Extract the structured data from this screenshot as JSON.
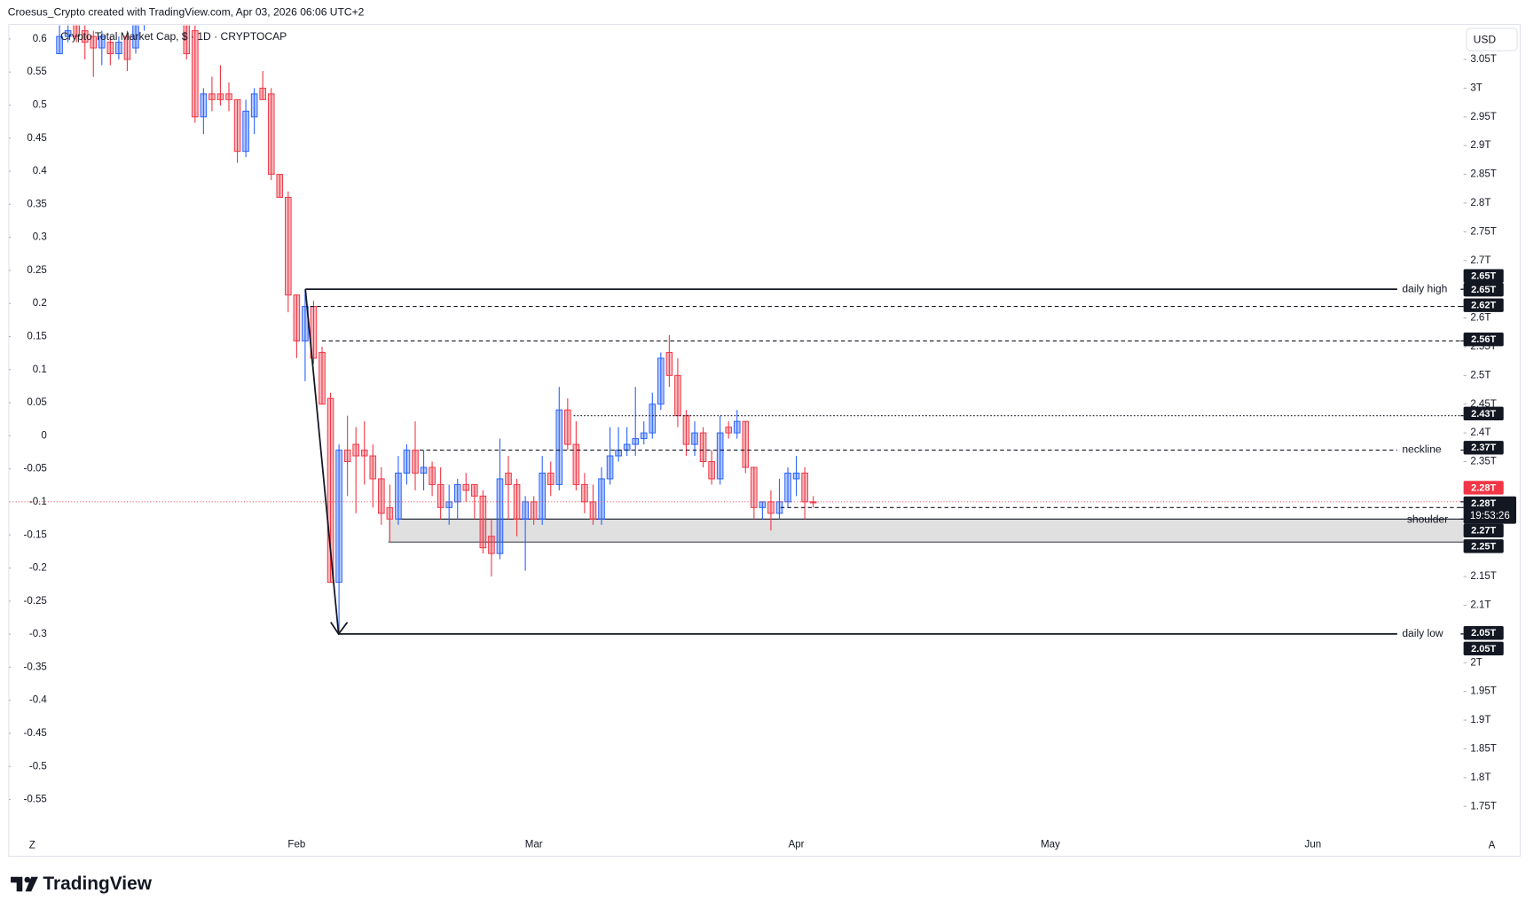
{
  "chart_data": {
    "type": "candlestick",
    "header": "Croesus_Crypto created with TradingView.com, Apr 03, 2026 06:06 UTC+2",
    "legend_title": "Crypto Total Market Cap, $ · 1D · CRYPTOCAP",
    "currency": "USD",
    "scale_buttons": [
      "Z",
      "A"
    ],
    "brand": "TradingView",
    "up_color": "#2962ff",
    "down_color": "#f23645",
    "grid": false,
    "categories": [
      null,
      null,
      null,
      null,
      null,
      null,
      null,
      null,
      null,
      null,
      null,
      null,
      null,
      null,
      null,
      null,
      null,
      null,
      null,
      null,
      null,
      null,
      null,
      null,
      null,
      null,
      null,
      null,
      "Feb",
      null,
      null,
      null,
      null,
      null,
      null,
      null,
      null,
      null,
      null,
      null,
      null,
      null,
      null,
      null,
      null,
      null,
      null,
      null,
      null,
      null,
      null,
      null,
      null,
      null,
      null,
      null,
      "Mar",
      null,
      null,
      null,
      null,
      null,
      null,
      null,
      null,
      null,
      null,
      null,
      null,
      null,
      null,
      null,
      null,
      null,
      null,
      null,
      null,
      null,
      null,
      null,
      null,
      null,
      null,
      null,
      null,
      null,
      null,
      "Apr",
      null,
      null,
      null,
      null,
      null,
      null,
      null,
      null,
      null,
      null,
      null,
      null,
      null,
      null,
      null,
      null,
      null,
      null,
      null,
      null,
      null,
      null,
      null,
      null,
      null,
      null,
      null,
      null,
      null,
      "May",
      null,
      null,
      null,
      null,
      null,
      null,
      null,
      null,
      null,
      null,
      null,
      null,
      null,
      null,
      null,
      null,
      null,
      null,
      null,
      null,
      null,
      null,
      null,
      null,
      null,
      null,
      null,
      null,
      null,
      null,
      "Jun"
    ],
    "open": [
      3.06,
      3.09,
      3.11,
      3.1,
      3.09,
      3.07,
      3.08,
      3.06,
      3.09,
      3.07,
      3.11,
      3.16,
      3.15,
      3.17,
      3.15,
      3.12,
      3.1,
      2.95,
      2.99,
      2.99,
      2.99,
      2.98,
      2.89,
      2.95,
      3.0,
      2.99,
      2.85,
      2.81,
      2.64,
      2.56,
      2.62,
      2.54,
      2.46,
      2.14,
      2.37,
      2.38,
      2.37,
      2.36,
      2.32,
      2.27,
      2.25,
      2.33,
      2.37,
      2.33,
      2.34,
      2.31,
      2.27,
      2.28,
      2.31,
      2.31,
      2.29,
      2.22,
      2.19,
      2.33,
      2.31,
      2.25,
      2.28,
      2.25,
      2.33,
      2.31,
      2.44,
      2.38,
      2.31,
      2.28,
      2.25,
      2.32,
      2.36,
      2.37,
      2.38,
      2.39,
      2.4,
      2.45,
      2.54,
      2.5,
      2.43,
      2.38,
      2.4,
      2.35,
      2.32,
      2.41,
      2.4,
      2.42,
      2.34,
      2.27,
      2.28,
      2.26,
      2.28,
      2.32,
      2.33,
      2.28,
      null,
      null,
      null,
      null,
      null,
      null,
      null,
      null,
      null,
      null,
      null,
      null,
      null,
      null,
      null,
      null,
      null,
      null,
      null,
      null,
      null,
      null,
      null,
      null,
      null,
      null,
      null,
      null,
      null,
      null,
      null,
      null,
      null,
      null,
      null,
      null,
      null,
      null,
      null,
      null,
      null,
      null,
      null,
      null,
      null,
      null,
      null,
      null,
      null,
      null,
      null,
      null,
      null,
      null,
      null,
      null,
      null,
      null,
      null
    ],
    "high": [
      3.11,
      3.12,
      3.12,
      3.11,
      3.1,
      3.1,
      3.09,
      3.09,
      3.1,
      3.13,
      3.18,
      3.2,
      3.19,
      3.21,
      3.17,
      3.13,
      3.11,
      3.0,
      3.02,
      3.04,
      3.01,
      2.98,
      2.98,
      3.0,
      3.03,
      3.0,
      2.85,
      2.82,
      2.64,
      2.65,
      2.63,
      2.55,
      2.47,
      2.38,
      2.43,
      2.41,
      2.42,
      2.38,
      2.34,
      2.31,
      2.36,
      2.38,
      2.42,
      2.37,
      2.35,
      2.34,
      2.31,
      2.32,
      2.33,
      2.31,
      2.3,
      2.25,
      2.39,
      2.36,
      2.32,
      2.29,
      2.29,
      2.36,
      2.35,
      2.48,
      2.46,
      2.42,
      2.33,
      2.31,
      2.34,
      2.41,
      2.41,
      2.41,
      2.48,
      2.42,
      2.47,
      2.54,
      2.57,
      2.53,
      2.44,
      2.42,
      2.41,
      2.37,
      2.43,
      2.42,
      2.44,
      2.42,
      2.34,
      2.28,
      2.3,
      2.32,
      2.34,
      2.36,
      2.34,
      2.29,
      null,
      null,
      null,
      null,
      null,
      null,
      null,
      null,
      null,
      null,
      null,
      null,
      null,
      null,
      null,
      null,
      null,
      null,
      null,
      null,
      null,
      null,
      null,
      null,
      null,
      null,
      null,
      null,
      null,
      null,
      null,
      null,
      null,
      null,
      null,
      null,
      null,
      null,
      null,
      null,
      null,
      null,
      null,
      null,
      null,
      null,
      null,
      null,
      null,
      null,
      null,
      null,
      null,
      null,
      null,
      null,
      null,
      null,
      null
    ],
    "low": [
      3.06,
      3.08,
      3.08,
      3.05,
      3.02,
      3.04,
      3.04,
      3.05,
      3.03,
      3.06,
      3.1,
      3.13,
      3.12,
      3.14,
      3.12,
      3.05,
      2.94,
      2.92,
      2.96,
      2.97,
      2.96,
      2.87,
      2.88,
      2.92,
      2.98,
      2.84,
      2.81,
      2.61,
      2.53,
      2.49,
      2.52,
      2.45,
      2.14,
      2.05,
      2.29,
      2.26,
      2.31,
      2.27,
      2.24,
      2.21,
      2.24,
      2.31,
      2.3,
      2.3,
      2.29,
      2.25,
      2.24,
      2.25,
      2.28,
      2.25,
      2.19,
      2.15,
      2.18,
      2.25,
      2.22,
      2.16,
      2.24,
      2.24,
      2.29,
      2.3,
      2.37,
      2.3,
      2.26,
      2.24,
      2.24,
      2.31,
      2.35,
      2.36,
      2.36,
      2.38,
      2.39,
      2.44,
      2.48,
      2.41,
      2.36,
      2.36,
      2.34,
      2.31,
      2.31,
      2.39,
      2.39,
      2.33,
      2.25,
      2.25,
      2.23,
      2.25,
      2.27,
      2.29,
      2.25,
      2.27,
      null,
      null,
      null,
      null,
      null,
      null,
      null,
      null,
      null,
      null,
      null,
      null,
      null,
      null,
      null,
      null,
      null,
      null,
      null,
      null,
      null,
      null,
      null,
      null,
      null,
      null,
      null,
      null,
      null,
      null,
      null,
      null,
      null,
      null,
      null,
      null,
      null,
      null,
      null,
      null,
      null,
      null,
      null,
      null,
      null,
      null,
      null,
      null,
      null,
      null,
      null,
      null,
      null,
      null,
      null,
      null,
      null,
      null,
      null
    ],
    "close": [
      3.09,
      3.1,
      3.09,
      3.08,
      3.07,
      3.09,
      3.06,
      3.08,
      3.05,
      3.11,
      3.16,
      3.15,
      3.17,
      3.15,
      3.13,
      3.06,
      2.95,
      2.99,
      2.98,
      2.98,
      2.98,
      2.89,
      2.96,
      2.99,
      2.98,
      2.85,
      2.81,
      2.64,
      2.56,
      2.62,
      2.53,
      2.45,
      2.14,
      2.37,
      2.35,
      2.36,
      2.36,
      2.32,
      2.26,
      2.25,
      2.33,
      2.37,
      2.33,
      2.34,
      2.31,
      2.27,
      2.28,
      2.31,
      2.3,
      2.29,
      2.2,
      2.19,
      2.32,
      2.31,
      2.25,
      2.28,
      2.25,
      2.33,
      2.31,
      2.44,
      2.38,
      2.31,
      2.28,
      2.25,
      2.32,
      2.36,
      2.37,
      2.38,
      2.39,
      2.4,
      2.45,
      2.53,
      2.5,
      2.43,
      2.38,
      2.4,
      2.35,
      2.32,
      2.4,
      2.4,
      2.42,
      2.34,
      2.27,
      2.28,
      2.26,
      2.28,
      2.33,
      2.33,
      2.28,
      2.28,
      null,
      null,
      null,
      null,
      null,
      null,
      null,
      null,
      null,
      null,
      null,
      null,
      null,
      null,
      null,
      null,
      null,
      null,
      null,
      null,
      null,
      null,
      null,
      null,
      null,
      null,
      null,
      null,
      null,
      null,
      null,
      null,
      null,
      null,
      null,
      null,
      null,
      null,
      null,
      null,
      null,
      null,
      null,
      null,
      null,
      null,
      null,
      null,
      null,
      null,
      null,
      null,
      null,
      null,
      null,
      null,
      null,
      null,
      null
    ],
    "ylim": [
      1.702,
      3.111
    ],
    "yticks": [
      {
        "value": 3.05,
        "label": "3.05T"
      },
      {
        "value": 3,
        "label": "3T"
      },
      {
        "value": 2.95,
        "label": "2.95T"
      },
      {
        "value": 2.9,
        "label": "2.9T"
      },
      {
        "value": 2.85,
        "label": "2.85T"
      },
      {
        "value": 2.8,
        "label": "2.8T"
      },
      {
        "value": 2.75,
        "label": "2.75T"
      },
      {
        "value": 2.7,
        "label": "2.7T"
      },
      {
        "value": 2.6,
        "label": "2.6T"
      },
      {
        "value": 2.55,
        "label": "2.55T"
      },
      {
        "value": 2.5,
        "label": "2.5T"
      },
      {
        "value": 2.45,
        "label": "2.45T"
      },
      {
        "value": 2.4,
        "label": "2.4T"
      },
      {
        "value": 2.35,
        "label": "2.35T"
      },
      {
        "value": 2.15,
        "label": "2.15T"
      },
      {
        "value": 2.1,
        "label": "2.1T"
      },
      {
        "value": 2,
        "label": "2T"
      },
      {
        "value": 1.95,
        "label": "1.95T"
      },
      {
        "value": 1.9,
        "label": "1.9T"
      },
      {
        "value": 1.85,
        "label": "1.85T"
      },
      {
        "value": 1.8,
        "label": "1.8T"
      },
      {
        "value": 1.75,
        "label": "1.75T"
      }
    ],
    "y2lim": [
      -0.602,
      0.622
    ],
    "y2ticks": [
      0.6,
      0.55,
      0.5,
      0.45,
      0.4,
      0.35,
      0.3,
      0.25,
      0.2,
      0.15,
      0.1,
      0.05,
      0,
      -0.05,
      -0.1,
      -0.15,
      -0.2,
      -0.25,
      -0.3,
      -0.35,
      -0.4,
      -0.45,
      -0.5,
      -0.55
    ],
    "levels": [
      {
        "value": 2.65,
        "label": "daily high",
        "style": "solid"
      },
      {
        "value": 2.62,
        "style": "dashed"
      },
      {
        "value": 2.56,
        "style": "dashed"
      },
      {
        "value": 2.43,
        "style": "dotted"
      },
      {
        "value": 2.37,
        "label": "neckline",
        "style": "dashed"
      },
      {
        "value": 2.27,
        "style": "dashed"
      },
      {
        "value": 2.05,
        "label": "daily low",
        "style": "solid"
      }
    ],
    "zone": {
      "values": [
        2.21,
        2.25
      ],
      "label": "shoulder",
      "color": "#e0e0e0"
    },
    "last_price": 2.28,
    "last_price_color": "#f23645",
    "price_labels": [
      {
        "value": 2.65,
        "label": "2.65T"
      },
      {
        "value": 2.65,
        "label": "2.65T"
      },
      {
        "value": 2.62,
        "label": "2.62T"
      },
      {
        "value": 2.56,
        "label": "2.56T"
      },
      {
        "value": 2.43,
        "label": "2.43T"
      },
      {
        "value": 2.37,
        "label": "2.37T"
      },
      {
        "value": 2.28,
        "label": "2.28T",
        "color": "#f23645"
      },
      {
        "value": 2.28,
        "label": "2.28T"
      },
      {
        "value": 2.27,
        "label": "2.27T"
      },
      {
        "value": 2.25,
        "label": "2.25T"
      },
      {
        "value": 2.05,
        "label": "2.05T"
      },
      {
        "value": 2.05,
        "label": "2.05T"
      }
    ],
    "countdown": "19:53:26"
  }
}
